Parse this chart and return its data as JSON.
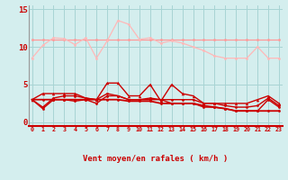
{
  "x": [
    0,
    1,
    2,
    3,
    4,
    5,
    6,
    7,
    8,
    9,
    10,
    11,
    12,
    13,
    14,
    15,
    16,
    17,
    18,
    19,
    20,
    21,
    22,
    23
  ],
  "rafales_high": [
    11.0,
    11.0,
    11.0,
    11.0,
    11.0,
    11.0,
    11.0,
    11.0,
    11.0,
    11.0,
    11.0,
    11.0,
    11.0,
    11.0,
    11.0,
    11.0,
    11.0,
    11.0,
    11.0,
    11.0,
    11.0,
    11.0,
    11.0,
    11.0
  ],
  "rafales_var": [
    8.5,
    10.2,
    11.2,
    11.1,
    10.3,
    11.2,
    8.5,
    10.8,
    13.5,
    13.0,
    11.0,
    11.2,
    10.5,
    10.8,
    10.5,
    10.0,
    9.5,
    8.8,
    8.5,
    8.5,
    8.5,
    10.0,
    8.5,
    8.5
  ],
  "moyen_high": [
    3.0,
    3.8,
    3.8,
    3.8,
    3.8,
    3.2,
    3.0,
    5.2,
    5.2,
    3.5,
    3.5,
    5.0,
    2.8,
    5.0,
    3.8,
    3.5,
    2.5,
    2.5,
    2.5,
    2.5,
    2.5,
    3.0,
    3.5,
    2.5
  ],
  "moyen_mid": [
    3.0,
    2.0,
    3.2,
    3.5,
    3.5,
    3.2,
    3.0,
    3.8,
    3.5,
    3.0,
    3.0,
    3.2,
    3.0,
    3.0,
    3.0,
    3.0,
    2.5,
    2.5,
    2.2,
    2.0,
    2.0,
    2.2,
    3.2,
    2.2
  ],
  "moyen_low": [
    3.0,
    1.8,
    3.0,
    3.0,
    2.8,
    3.0,
    2.5,
    3.5,
    3.5,
    3.0,
    3.0,
    3.0,
    3.0,
    2.5,
    2.5,
    2.5,
    2.0,
    2.0,
    1.8,
    1.5,
    1.5,
    1.5,
    3.0,
    2.0
  ],
  "moyen_trend": [
    3.0,
    3.0,
    3.0,
    3.0,
    3.0,
    3.0,
    3.0,
    3.0,
    3.0,
    2.8,
    2.8,
    2.8,
    2.5,
    2.5,
    2.5,
    2.5,
    2.2,
    2.0,
    1.8,
    1.5,
    1.5,
    1.5,
    1.5,
    1.5
  ],
  "bg_color": "#d4eeee",
  "grid_color": "#a8d4d4",
  "rafales_high_color": "#ff9999",
  "rafales_var_color": "#ffb8b8",
  "moyen_color": "#cc0000",
  "xlabel": "Vent moyen/en rafales ( km/h )",
  "yticks": [
    0,
    5,
    10,
    15
  ],
  "xlim": [
    -0.3,
    23.3
  ],
  "ylim": [
    -0.5,
    15.5
  ]
}
